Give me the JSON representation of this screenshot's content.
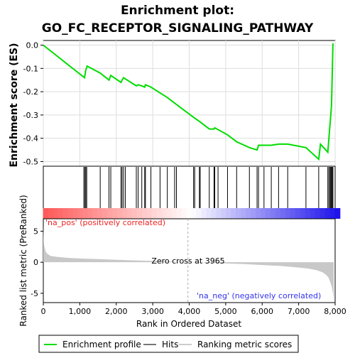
{
  "title_line1": "Enrichment plot:",
  "title_line2": "GO_FC_RECEPTOR_SIGNALING_PATHWAY",
  "chart_data": [
    {
      "type": "line",
      "name": "enrichment-profile",
      "ylabel": "Enrichment score (ES)",
      "ylim": [
        -0.52,
        0.02
      ],
      "yticks": [
        "0.0",
        "-0.1",
        "-0.2",
        "-0.3",
        "-0.4",
        "-0.5"
      ],
      "ytick_values": [
        0.0,
        -0.1,
        -0.2,
        -0.3,
        -0.4,
        -0.5
      ],
      "xlim": [
        0,
        8000
      ],
      "grid": true,
      "color": "#00dd00",
      "x": [
        0,
        1130,
        1160,
        1200,
        1560,
        1800,
        1850,
        2130,
        2160,
        2200,
        2250,
        2550,
        2600,
        2700,
        2780,
        2800,
        2950,
        3200,
        3400,
        3650,
        4120,
        4300,
        4550,
        4680,
        4700,
        5050,
        5300,
        5650,
        5860,
        5900,
        6050,
        6250,
        6450,
        6700,
        7200,
        7550,
        7600,
        7800,
        7850,
        7900,
        7920,
        7940,
        7960
      ],
      "y": [
        0.0,
        -0.14,
        -0.11,
        -0.09,
        -0.12,
        -0.15,
        -0.13,
        -0.16,
        -0.15,
        -0.14,
        -0.145,
        -0.175,
        -0.17,
        -0.175,
        -0.18,
        -0.17,
        -0.18,
        -0.205,
        -0.225,
        -0.255,
        -0.31,
        -0.33,
        -0.36,
        -0.36,
        -0.355,
        -0.385,
        -0.415,
        -0.44,
        -0.45,
        -0.43,
        -0.43,
        -0.43,
        -0.425,
        -0.425,
        -0.44,
        -0.49,
        -0.425,
        -0.46,
        -0.36,
        -0.26,
        -0.13,
        0.005,
        0.005
      ]
    },
    {
      "type": "scatter",
      "name": "hits",
      "x": [
        1110,
        1140,
        1165,
        1190,
        1560,
        1800,
        1850,
        2130,
        2160,
        2200,
        2250,
        2550,
        2600,
        2700,
        2780,
        2800,
        2950,
        3200,
        3400,
        3600,
        3650,
        4120,
        4150,
        4280,
        4300,
        4550,
        4680,
        4700,
        4790,
        5050,
        5300,
        5650,
        5860,
        5900,
        6050,
        6250,
        6450,
        6700,
        7200,
        7550,
        7800,
        7830,
        7860,
        7880,
        7900,
        7920,
        7940
      ]
    },
    {
      "type": "area",
      "name": "ranking-metric",
      "ylabel": "Ranked list metric (PreRanked)",
      "xlabel": "Rank in Ordered Dataset",
      "xticks": [
        "0",
        "1,000",
        "2,000",
        "3,000",
        "4,000",
        "5,000",
        "6,000",
        "7,000",
        "8,000"
      ],
      "xtick_values": [
        0,
        1000,
        2000,
        3000,
        4000,
        5000,
        6000,
        7000,
        8000
      ],
      "yticks": [
        "5",
        "0",
        "-5"
      ],
      "ytick_values": [
        5,
        0,
        -5
      ],
      "ylim": [
        -6.5,
        7
      ],
      "x": [
        0,
        10,
        30,
        60,
        100,
        200,
        400,
        700,
        1000,
        1500,
        2000,
        2500,
        3000,
        3500,
        3965,
        4500,
        5000,
        5500,
        6000,
        6500,
        7000,
        7300,
        7500,
        7650,
        7750,
        7820,
        7870,
        7910,
        7940,
        7960
      ],
      "y": [
        6.0,
        3.5,
        2.5,
        1.8,
        1.4,
        1.0,
        0.85,
        0.7,
        0.6,
        0.5,
        0.4,
        0.3,
        0.2,
        0.1,
        0.0,
        -0.08,
        -0.2,
        -0.3,
        -0.45,
        -0.6,
        -0.85,
        -1.05,
        -1.3,
        -1.6,
        -2.0,
        -2.5,
        -3.2,
        -4.0,
        -5.0,
        -6.0
      ],
      "zero_cross_label": "Zero cross at 3965",
      "pos_label": "'na_pos' (positively correlated)",
      "neg_label": "'na_neg' (negatively correlated)"
    }
  ],
  "legend": {
    "items": [
      {
        "label": "Enrichment profile",
        "color": "#00dd00"
      },
      {
        "label": "Hits",
        "color": "#777777"
      },
      {
        "label": "Ranking metric scores",
        "color": "#cccccc"
      }
    ]
  }
}
